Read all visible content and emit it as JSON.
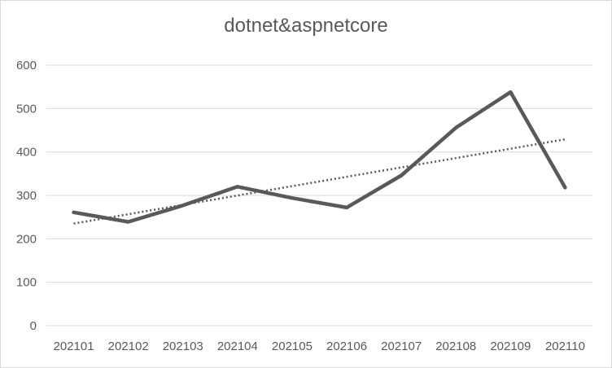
{
  "chart_data": {
    "type": "line",
    "title": "dotnet&aspnetcore",
    "xlabel": "",
    "ylabel": "",
    "categories": [
      "202101",
      "202102",
      "202103",
      "202104",
      "202105",
      "202106",
      "202107",
      "202108",
      "202109",
      "202110"
    ],
    "series": [
      {
        "values": [
          261,
          239,
          277,
          320,
          294,
          272,
          346,
          456,
          538,
          318
        ],
        "color": "#595959"
      }
    ],
    "trendline": {
      "type": "linear",
      "style": "dotted",
      "color": "#595959"
    },
    "ylim": [
      0,
      600
    ],
    "yticks": [
      0,
      100,
      200,
      300,
      400,
      500,
      600
    ],
    "grid": true,
    "legend": "none"
  }
}
